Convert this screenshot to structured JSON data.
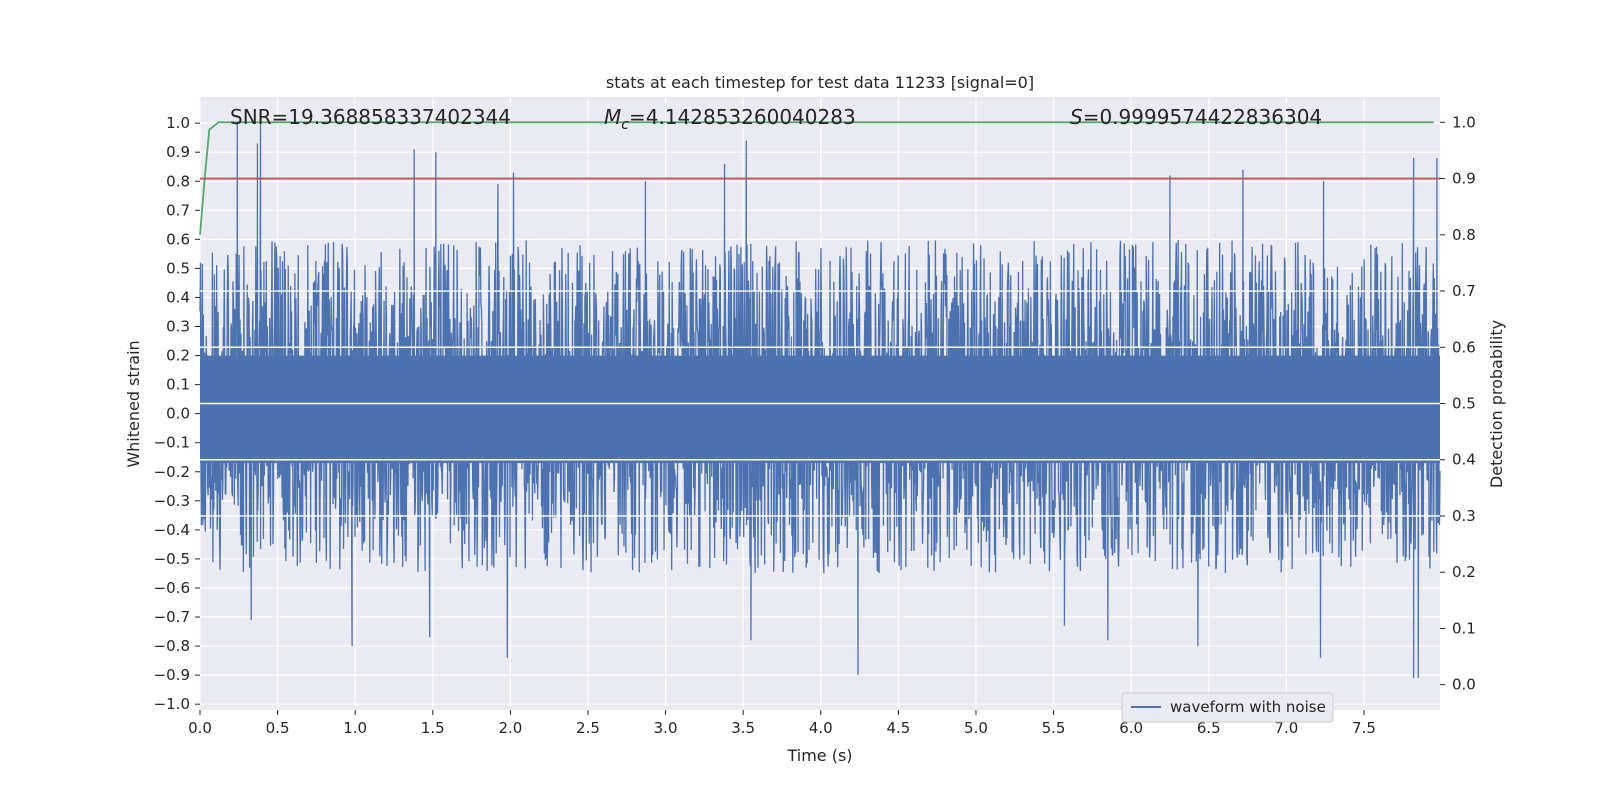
{
  "chart_data": {
    "type": "line",
    "title": "stats at each timestep for test data 11233 [signal=0]",
    "xlabel": "Time (s)",
    "ylabel": "Whitened strain",
    "y2label": "Detection probability",
    "xlim": [
      0.0,
      7.99
    ],
    "ylim": [
      -1.02,
      1.09
    ],
    "y2lim": [
      -0.045,
      1.045
    ],
    "x_ticks": [
      "0.0",
      "0.5",
      "1.0",
      "1.5",
      "2.0",
      "2.5",
      "3.0",
      "3.5",
      "4.0",
      "4.5",
      "5.0",
      "5.5",
      "6.0",
      "6.5",
      "7.0",
      "7.5"
    ],
    "y_ticks": [
      "1.0",
      "0.9",
      "0.8",
      "0.7",
      "0.6",
      "0.5",
      "0.4",
      "0.3",
      "0.2",
      "0.1",
      "0.0",
      "−0.1",
      "−0.2",
      "−0.3",
      "−0.4",
      "−0.5",
      "−0.6",
      "−0.7",
      "−0.8",
      "−0.9",
      "−1.0"
    ],
    "y2_ticks": [
      "1.0",
      "0.9",
      "0.8",
      "0.7",
      "0.6",
      "0.5",
      "0.4",
      "0.3",
      "0.2",
      "0.1",
      "0.0"
    ],
    "annotations": {
      "snr": "SNR=19.368858337402344",
      "mc_symbol": "M",
      "mc_sub": "c",
      "mc_value": "=4.142853260040283",
      "s_symbol": "S",
      "s_value": "=0.9999574422836304"
    },
    "legend": {
      "placement": "lower-right",
      "entries": [
        "waveform with noise"
      ]
    },
    "grid": true,
    "background_color": "#eaeaf2",
    "series": [
      {
        "name": "waveform with noise",
        "axis": "left",
        "color": "#4c72b0",
        "kind": "noise",
        "t_start": 0.0,
        "t_end": 7.99,
        "typical_peak_upper": 0.6,
        "typical_peak_lower": -0.55,
        "peaks": [
          {
            "x": 0.24,
            "y": 1.0
          },
          {
            "x": 0.39,
            "y": 1.0
          },
          {
            "x": 0.37,
            "y": 0.93
          },
          {
            "x": 1.38,
            "y": 0.91
          },
          {
            "x": 1.52,
            "y": 0.9
          },
          {
            "x": 1.92,
            "y": 0.79
          },
          {
            "x": 2.02,
            "y": 0.83
          },
          {
            "x": 2.87,
            "y": 0.8
          },
          {
            "x": 3.38,
            "y": 0.86
          },
          {
            "x": 3.52,
            "y": 0.94
          },
          {
            "x": 6.25,
            "y": 0.82
          },
          {
            "x": 6.72,
            "y": 0.84
          },
          {
            "x": 7.24,
            "y": 0.8
          },
          {
            "x": 7.82,
            "y": 0.88
          },
          {
            "x": 7.97,
            "y": 0.88
          },
          {
            "x": 0.33,
            "y": -0.71
          },
          {
            "x": 0.98,
            "y": -0.8
          },
          {
            "x": 1.48,
            "y": -0.77
          },
          {
            "x": 1.98,
            "y": -0.84
          },
          {
            "x": 3.55,
            "y": -0.78
          },
          {
            "x": 4.24,
            "y": -0.9
          },
          {
            "x": 5.57,
            "y": -0.73
          },
          {
            "x": 5.85,
            "y": -0.78
          },
          {
            "x": 6.43,
            "y": -0.8
          },
          {
            "x": 7.22,
            "y": -0.84
          },
          {
            "x": 7.82,
            "y": -0.91
          },
          {
            "x": 7.85,
            "y": -0.91
          }
        ]
      },
      {
        "name": "detection probability",
        "axis": "right",
        "color": "#55a868",
        "x": [
          0.0,
          0.03,
          0.06,
          0.12,
          0.2,
          1.0,
          2.0,
          3.0,
          4.0,
          5.0,
          6.0,
          7.0,
          7.95
        ],
        "y": [
          0.8,
          0.9,
          0.987,
          1.0,
          1.0,
          1.0,
          1.0,
          1.0,
          1.0,
          1.0,
          1.0,
          1.0,
          1.0
        ]
      },
      {
        "name": "threshold",
        "axis": "right",
        "color": "#c44e52",
        "x": [
          0.0,
          7.99
        ],
        "y": [
          0.9,
          0.9
        ]
      }
    ]
  }
}
